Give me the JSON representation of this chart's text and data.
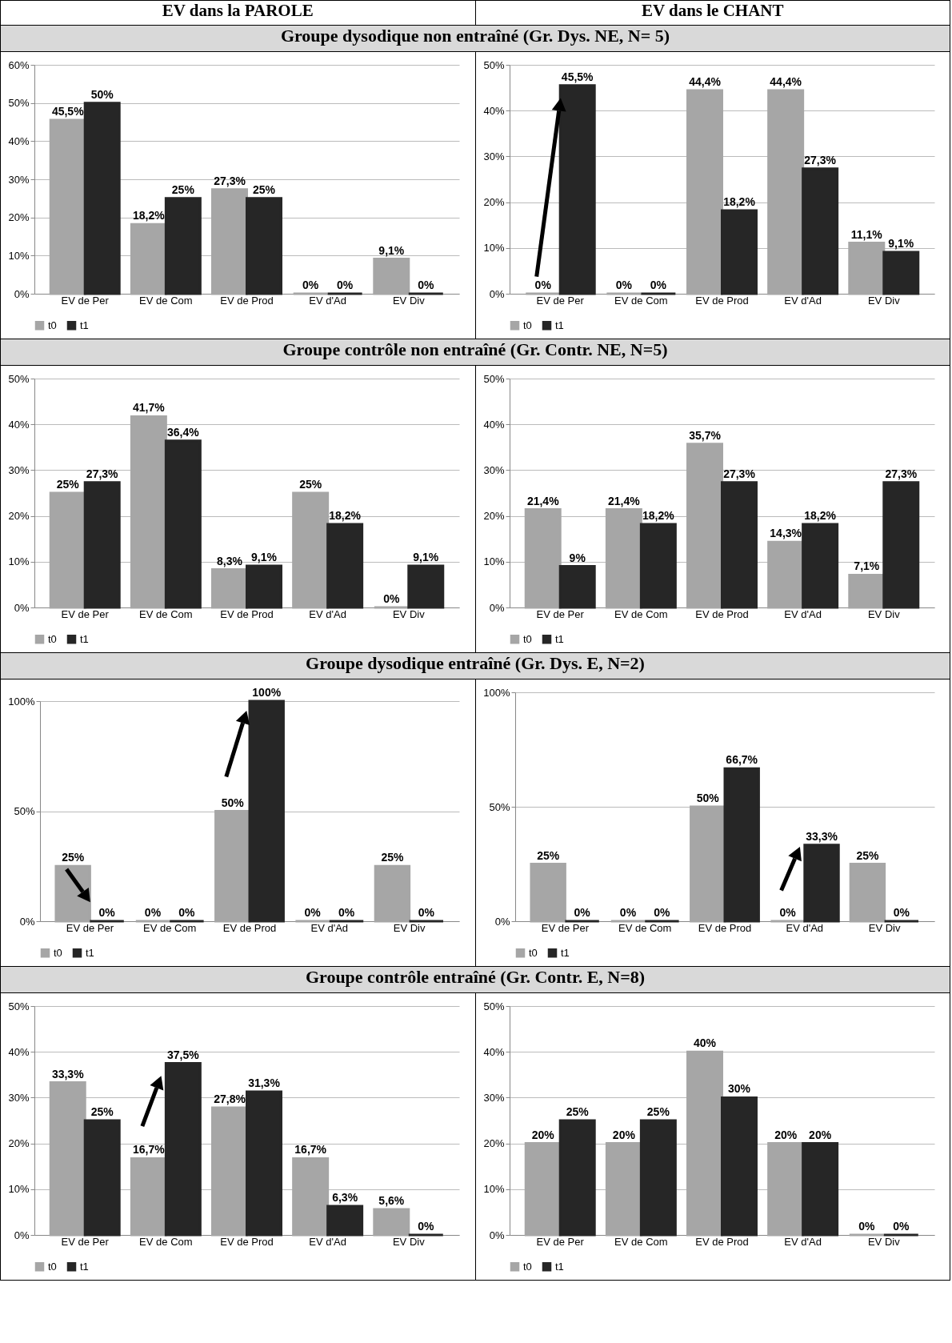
{
  "chart_data": [
    {
      "type": "bar",
      "title": "Groupe dysodique non entraîné (Gr. Dys. NE, N= 5)",
      "annotations": [
        "EV dans la PAROLE"
      ],
      "categories": [
        "EV de Per",
        "EV de Com",
        "EV de Prod",
        "EV d'Ad",
        "EV Div"
      ],
      "series": [
        {
          "name": "t0",
          "color": "#a6a6a6",
          "values": [
            45.5,
            18.2,
            27.3,
            0,
            9.1
          ],
          "value_labels": [
            "45,5%",
            "18,2%",
            "27,3%",
            "0%",
            "9,1%"
          ]
        },
        {
          "name": "t1",
          "color": "#262626",
          "values": [
            50,
            25,
            25,
            0,
            0
          ],
          "value_labels": [
            "50%",
            "25%",
            "25%",
            "0%",
            "0%"
          ]
        }
      ],
      "ylim": [
        0,
        60
      ],
      "yticks": [
        {
          "value": 0,
          "label": "0%"
        },
        {
          "value": 10,
          "label": "10%"
        },
        {
          "value": 20,
          "label": "20%"
        },
        {
          "value": 30,
          "label": "30%"
        },
        {
          "value": 40,
          "label": "40%"
        },
        {
          "value": 50,
          "label": "50%"
        },
        {
          "value": 60,
          "label": "60%"
        }
      ],
      "grid": "y",
      "legend": "bottom"
    },
    {
      "type": "bar",
      "annotations": [
        "EV dans le CHANT"
      ],
      "categories": [
        "EV de Per",
        "EV de Com",
        "EV de Prod",
        "EV d'Ad",
        "EV Div"
      ],
      "series": [
        {
          "name": "t0",
          "color": "#a6a6a6",
          "values": [
            0,
            0,
            44.4,
            44.4,
            11.1
          ],
          "value_labels": [
            "0%",
            "0%",
            "44,4%",
            "44,4%",
            "11,1%"
          ]
        },
        {
          "name": "t1",
          "color": "#262626",
          "values": [
            45.5,
            0,
            18.2,
            27.3,
            9.1
          ],
          "value_labels": [
            "45,5%",
            "0%",
            "18,2%",
            "27,3%",
            "9,1%"
          ]
        }
      ],
      "ylim": [
        0,
        50
      ],
      "yticks": [
        {
          "value": 0,
          "label": "0%"
        },
        {
          "value": 10,
          "label": "10%"
        },
        {
          "value": 20,
          "label": "20%"
        },
        {
          "value": 30,
          "label": "30%"
        },
        {
          "value": 40,
          "label": "40%"
        },
        {
          "value": 50,
          "label": "50%"
        }
      ],
      "grid": "y",
      "legend": "bottom"
    },
    {
      "type": "bar",
      "title": "Groupe contrôle non entraîné (Gr. Contr. NE, N=5)",
      "categories": [
        "EV de Per",
        "EV de Com",
        "EV de Prod",
        "EV d'Ad",
        "EV Div"
      ],
      "series": [
        {
          "name": "t0",
          "color": "#a6a6a6",
          "values": [
            25,
            41.7,
            8.3,
            25,
            0
          ],
          "value_labels": [
            "25%",
            "41,7%",
            "8,3%",
            "25%",
            "0%"
          ]
        },
        {
          "name": "t1",
          "color": "#262626",
          "values": [
            27.3,
            36.4,
            9.1,
            18.2,
            9.1
          ],
          "value_labels": [
            "27,3%",
            "36,4%",
            "9,1%",
            "18,2%",
            "9,1%"
          ]
        }
      ],
      "ylim": [
        0,
        50
      ],
      "yticks": [
        {
          "value": 0,
          "label": "0%"
        },
        {
          "value": 10,
          "label": "10%"
        },
        {
          "value": 20,
          "label": "20%"
        },
        {
          "value": 30,
          "label": "30%"
        },
        {
          "value": 40,
          "label": "40%"
        },
        {
          "value": 50,
          "label": "50%"
        }
      ],
      "grid": "y",
      "legend": "bottom"
    },
    {
      "type": "bar",
      "categories": [
        "EV de Per",
        "EV de Com",
        "EV de Prod",
        "EV d'Ad",
        "EV Div"
      ],
      "series": [
        {
          "name": "t0",
          "color": "#a6a6a6",
          "values": [
            21.4,
            21.4,
            35.7,
            14.3,
            7.1
          ],
          "value_labels": [
            "21,4%",
            "21,4%",
            "35,7%",
            "14,3%",
            "7,1%"
          ]
        },
        {
          "name": "t1",
          "color": "#262626",
          "values": [
            9,
            18.2,
            27.3,
            18.2,
            27.3
          ],
          "value_labels": [
            "9%",
            "18,2%",
            "27,3%",
            "18,2%",
            "27,3%"
          ]
        }
      ],
      "ylim": [
        0,
        50
      ],
      "yticks": [
        {
          "value": 0,
          "label": "0%"
        },
        {
          "value": 10,
          "label": "10%"
        },
        {
          "value": 20,
          "label": "20%"
        },
        {
          "value": 30,
          "label": "30%"
        },
        {
          "value": 40,
          "label": "40%"
        },
        {
          "value": 50,
          "label": "50%"
        }
      ],
      "grid": "y",
      "legend": "bottom"
    },
    {
      "type": "bar",
      "title": "Groupe dysodique entraîné (Gr. Dys. E, N=2)",
      "categories": [
        "EV de Per",
        "EV de Com",
        "EV de Prod",
        "EV d'Ad",
        "EV Div"
      ],
      "series": [
        {
          "name": "t0",
          "color": "#a6a6a6",
          "values": [
            25,
            0,
            50,
            0,
            25
          ],
          "value_labels": [
            "25%",
            "0%",
            "50%",
            "0%",
            "25%"
          ]
        },
        {
          "name": "t1",
          "color": "#262626",
          "values": [
            0,
            0,
            100,
            0,
            0
          ],
          "value_labels": [
            "0%",
            "0%",
            "100%",
            "0%",
            "0%"
          ]
        }
      ],
      "ylim": [
        0,
        100
      ],
      "yticks": [
        {
          "value": 0,
          "label": "0%"
        },
        {
          "value": 50,
          "label": "50%"
        },
        {
          "value": 100,
          "label": "100%"
        }
      ],
      "grid": "y",
      "legend": "bottom"
    },
    {
      "type": "bar",
      "categories": [
        "EV de Per",
        "EV de Com",
        "EV de Prod",
        "EV d'Ad",
        "EV Div"
      ],
      "series": [
        {
          "name": "t0",
          "color": "#a6a6a6",
          "values": [
            25,
            0,
            50,
            0,
            25
          ],
          "value_labels": [
            "25%",
            "0%",
            "50%",
            "0%",
            "25%"
          ]
        },
        {
          "name": "t1",
          "color": "#262626",
          "values": [
            0,
            0,
            66.7,
            33.3,
            0
          ],
          "value_labels": [
            "0%",
            "0%",
            "66,7%",
            "33,3%",
            "0%"
          ]
        }
      ],
      "ylim": [
        0,
        100
      ],
      "yticks": [
        {
          "value": 0,
          "label": "0%"
        },
        {
          "value": 50,
          "label": "50%"
        },
        {
          "value": 100,
          "label": "100%"
        }
      ],
      "grid": "y",
      "legend": "bottom"
    },
    {
      "type": "bar",
      "title": "Groupe contrôle entraîné (Gr. Contr. E, N=8)",
      "categories": [
        "EV de Per",
        "EV de Com",
        "EV de Prod",
        "EV d'Ad",
        "EV Div"
      ],
      "series": [
        {
          "name": "t0",
          "color": "#a6a6a6",
          "values": [
            33.3,
            16.7,
            27.8,
            16.7,
            5.6
          ],
          "value_labels": [
            "33,3%",
            "16,7%",
            "27,8%",
            "16,7%",
            "5,6%"
          ]
        },
        {
          "name": "t1",
          "color": "#262626",
          "values": [
            25,
            37.5,
            31.3,
            6.3,
            0
          ],
          "value_labels": [
            "25%",
            "37,5%",
            "31,3%",
            "6,3%",
            "0%"
          ]
        }
      ],
      "ylim": [
        0,
        50
      ],
      "yticks": [
        {
          "value": 0,
          "label": "0%"
        },
        {
          "value": 10,
          "label": "10%"
        },
        {
          "value": 20,
          "label": "20%"
        },
        {
          "value": 30,
          "label": "30%"
        },
        {
          "value": 40,
          "label": "40%"
        },
        {
          "value": 50,
          "label": "50%"
        }
      ],
      "grid": "y",
      "legend": "bottom"
    },
    {
      "type": "bar",
      "categories": [
        "EV de Per",
        "EV de Com",
        "EV de Prod",
        "EV d'Ad",
        "EV Div"
      ],
      "series": [
        {
          "name": "t0",
          "color": "#a6a6a6",
          "values": [
            20,
            20,
            40,
            20,
            0
          ],
          "value_labels": [
            "20%",
            "20%",
            "40%",
            "20%",
            "0%"
          ]
        },
        {
          "name": "t1",
          "color": "#262626",
          "values": [
            25,
            25,
            30,
            20,
            0
          ],
          "value_labels": [
            "25%",
            "25%",
            "30%",
            "20%",
            "0%"
          ]
        }
      ],
      "ylim": [
        0,
        50
      ],
      "yticks": [
        {
          "value": 0,
          "label": "0%"
        },
        {
          "value": 10,
          "label": "10%"
        },
        {
          "value": 20,
          "label": "20%"
        },
        {
          "value": 30,
          "label": "30%"
        },
        {
          "value": 40,
          "label": "40%"
        },
        {
          "value": 50,
          "label": "50%"
        }
      ],
      "grid": "y",
      "legend": "bottom"
    }
  ]
}
